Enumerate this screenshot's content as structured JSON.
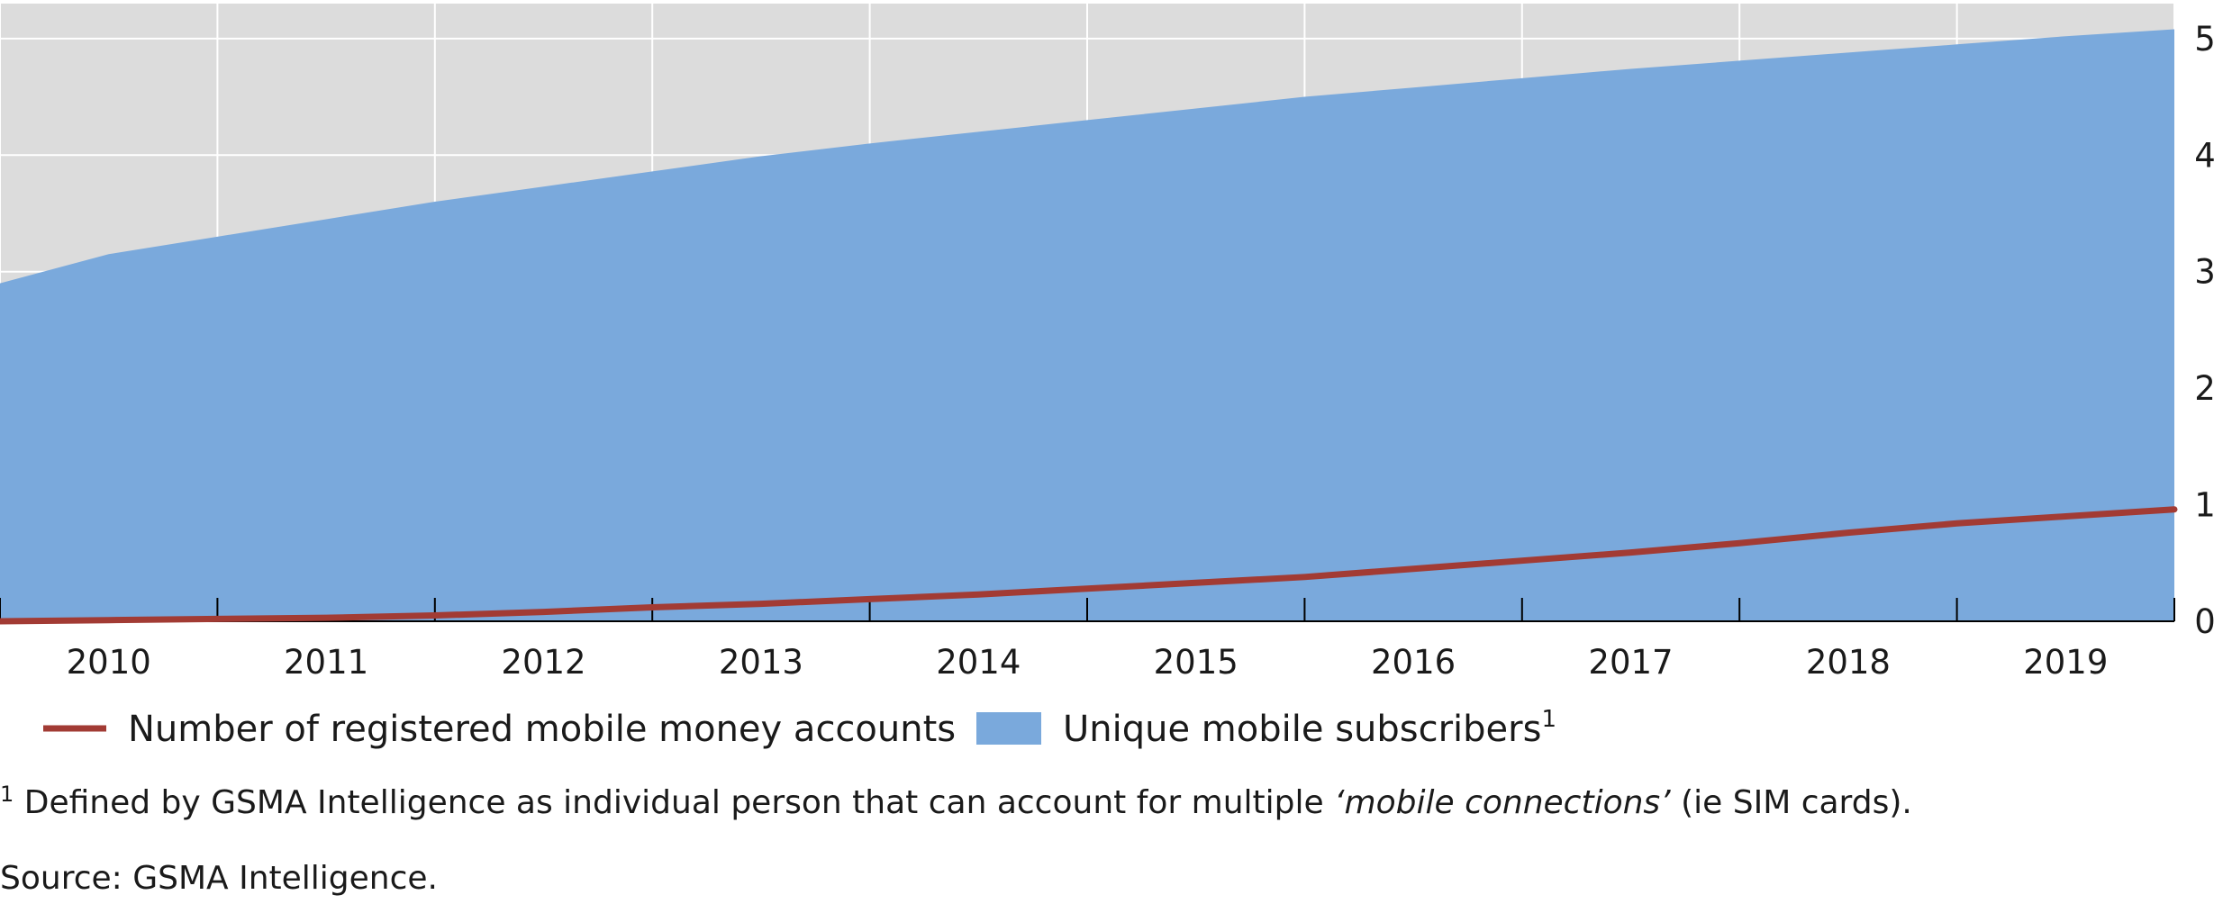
{
  "chart_data": {
    "type": "area",
    "x": [
      2010,
      2011,
      2012,
      2013,
      2014,
      2015,
      2016,
      2017,
      2018,
      2019
    ],
    "x_tick_labels": [
      "2010",
      "2011",
      "2012",
      "2013",
      "2014",
      "2015",
      "2016",
      "2017",
      "2018",
      "2019"
    ],
    "y_tick_labels": [
      "0",
      "1",
      "2",
      "3",
      "4",
      "5"
    ],
    "ylim": [
      0,
      5.3
    ],
    "y_axis_side": "right",
    "grid": true,
    "legend_position": "bottom-left",
    "series": [
      {
        "name": "Unique mobile subscribers",
        "name_superscript": "1",
        "kind": "area",
        "color": "#7aa9dc",
        "x": [
          2009.5,
          2010,
          2010.5,
          2011,
          2011.5,
          2012,
          2012.5,
          2013,
          2013.5,
          2014,
          2014.5,
          2015,
          2015.5,
          2016,
          2016.5,
          2017,
          2017.5,
          2018,
          2018.5,
          2019,
          2019.5
        ],
        "values": [
          2.9,
          3.15,
          3.3,
          3.45,
          3.6,
          3.73,
          3.86,
          3.99,
          4.1,
          4.2,
          4.3,
          4.4,
          4.5,
          4.58,
          4.66,
          4.74,
          4.81,
          4.88,
          4.95,
          5.02,
          5.08
        ]
      },
      {
        "name": "Number of registered mobile money accounts",
        "kind": "line",
        "color": "#a23b34",
        "x": [
          2009.5,
          2010,
          2010.5,
          2011,
          2011.5,
          2012,
          2012.5,
          2013,
          2013.5,
          2014,
          2014.5,
          2015,
          2015.5,
          2016,
          2016.5,
          2017,
          2017.5,
          2018,
          2018.5,
          2019,
          2019.5
        ],
        "values": [
          0.0,
          0.01,
          0.02,
          0.03,
          0.05,
          0.08,
          0.12,
          0.15,
          0.19,
          0.23,
          0.28,
          0.33,
          0.38,
          0.45,
          0.52,
          0.59,
          0.67,
          0.76,
          0.84,
          0.9,
          0.96
        ]
      }
    ]
  },
  "notes": {
    "footnote_marker": "1",
    "footnote_before": " Defined by GSMA Intelligence as individual person that can account for multiple ",
    "footnote_italic": "‘mobile connections’",
    "footnote_after": " (ie SIM cards).",
    "source": "Source: GSMA Intelligence."
  }
}
